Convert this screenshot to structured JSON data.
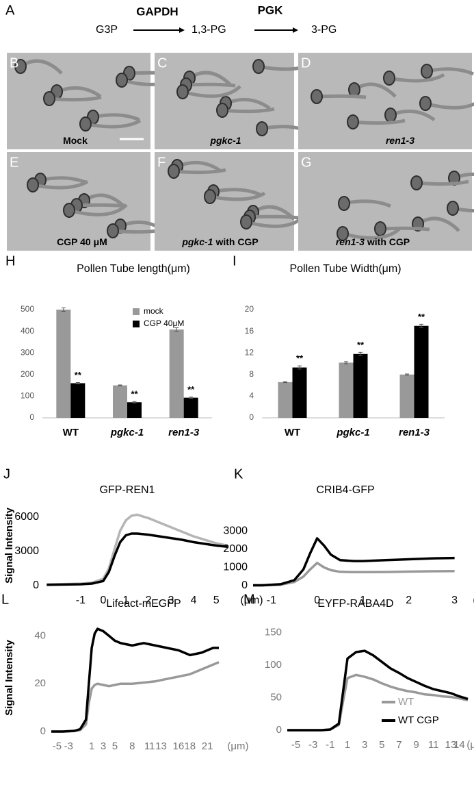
{
  "panel_a": {
    "label": "A",
    "substrate": "G3P",
    "enzyme1": "GAPDH",
    "intermediate": "1,3-PG",
    "enzyme2": "PGK",
    "product": "3-PG"
  },
  "micrographs": [
    {
      "label": "B",
      "caption": "Mock"
    },
    {
      "label": "C",
      "caption": "pgkc-1"
    },
    {
      "label": "D",
      "caption": "ren1-3"
    },
    {
      "label": "E",
      "caption": "CGP 40 μM"
    },
    {
      "label": "F",
      "caption": "pgkc-1",
      "caption_suffix": "with CGP"
    },
    {
      "label": "G",
      "caption": "ren1-3",
      "caption_suffix": "with CGP"
    }
  ],
  "chart_data": [
    {
      "type": "bar",
      "panel": "H",
      "title": "Pollen Tube length(μm)",
      "categories": [
        "WT",
        "pgkc-1",
        "ren1-3"
      ],
      "series": [
        {
          "name": "mock",
          "color": "#999999",
          "values": [
            500,
            150,
            408
          ],
          "errors": [
            8,
            2,
            8
          ]
        },
        {
          "name": "CGP 40μM",
          "color": "#000000",
          "values": [
            160,
            72,
            93
          ],
          "errors": [
            3,
            3,
            3
          ],
          "significance": [
            "**",
            "**",
            "**"
          ]
        }
      ],
      "ylim": [
        0,
        500
      ],
      "yticks": [
        0,
        100,
        200,
        300,
        400,
        500
      ],
      "grid": false
    },
    {
      "type": "bar",
      "panel": "I",
      "title": "Pollen Tube Width(μm)",
      "categories": [
        "WT",
        "pgkc-1",
        "ren1-3"
      ],
      "series": [
        {
          "color": "#999999",
          "values": [
            6.6,
            10.2,
            8.0
          ],
          "errors": [
            0.1,
            0.2,
            0.1
          ]
        },
        {
          "color": "#000000",
          "values": [
            9.3,
            11.8,
            17.0
          ],
          "errors": [
            0.3,
            0.3,
            0.3
          ],
          "significance": [
            "**",
            "**",
            "**"
          ]
        }
      ],
      "ylim": [
        0,
        20
      ],
      "yticks": [
        0,
        4,
        8,
        12,
        16,
        20
      ],
      "grid": false
    },
    {
      "type": "line",
      "panel": "J",
      "title": "GFP-REN1",
      "y_label": "Signal Intensity",
      "x_label": "(μm)",
      "x": [
        -2.5,
        -1.5,
        -1,
        -0.5,
        0,
        0.25,
        0.5,
        0.75,
        1,
        1.25,
        1.5,
        2,
        2.5,
        3,
        3.5,
        4,
        4.5,
        5,
        5.5
      ],
      "series": [
        {
          "color": "#b5b5b5",
          "values": [
            100,
            150,
            180,
            250,
            600,
            1500,
            3200,
            4800,
            5700,
            6100,
            6200,
            5900,
            5500,
            5100,
            4700,
            4300,
            4000,
            3700,
            3500
          ]
        },
        {
          "color": "#000000",
          "values": [
            80,
            100,
            120,
            180,
            400,
            1200,
            2600,
            3800,
            4400,
            4550,
            4550,
            4450,
            4300,
            4150,
            4000,
            3800,
            3650,
            3500,
            3400
          ]
        }
      ],
      "xlim": [
        -2.6,
        5.6
      ],
      "xticks": [
        -1,
        0,
        1,
        2,
        3,
        4,
        5
      ],
      "ylim": [
        0,
        7000
      ],
      "yticks": [
        0,
        3000,
        6000
      ]
    },
    {
      "type": "line",
      "panel": "K",
      "title": "CRIB4-GFP",
      "x_label": "(μm)",
      "x": [
        -1.4,
        -1.2,
        -0.8,
        -0.5,
        -0.3,
        -0.15,
        0,
        0.15,
        0.3,
        0.5,
        0.8,
        1,
        1.5,
        2,
        2.5,
        3
      ],
      "series": [
        {
          "color": "#999999",
          "values": [
            20,
            20,
            50,
            200,
            500,
            900,
            1250,
            1000,
            850,
            760,
            740,
            740,
            750,
            770,
            790,
            800
          ]
        },
        {
          "color": "#000000",
          "values": [
            20,
            20,
            80,
            300,
            900,
            1800,
            2600,
            2200,
            1700,
            1400,
            1350,
            1350,
            1400,
            1450,
            1500,
            1520
          ]
        }
      ],
      "xlim": [
        -1.4,
        3.2
      ],
      "xticks": [
        -1,
        0,
        1,
        2,
        3
      ],
      "ylim": [
        0,
        3200
      ],
      "yticks": [
        0,
        1000,
        2000,
        3000
      ]
    },
    {
      "type": "line",
      "panel": "L",
      "title": "Lifeact-mEGFP",
      "y_label": "Signal Intensity",
      "x_label": "(μm)",
      "x": [
        -6,
        -4,
        -2,
        -1,
        0,
        0.5,
        1,
        1.5,
        2,
        3,
        4,
        5,
        6,
        8,
        10,
        12,
        14,
        16,
        18,
        20,
        22,
        23
      ],
      "series": [
        {
          "color": "#999999",
          "values": [
            0,
            0,
            0.2,
            0.6,
            3,
            12,
            18,
            19.5,
            20,
            19.5,
            19,
            19.5,
            20,
            20,
            20.5,
            21,
            22,
            23,
            24,
            26,
            28,
            29
          ]
        },
        {
          "color": "#000000",
          "values": [
            0,
            0,
            0.3,
            1,
            5,
            20,
            35,
            41,
            43,
            42,
            40,
            38,
            37,
            36,
            37,
            36,
            35,
            34,
            32,
            33,
            35,
            35
          ]
        }
      ],
      "xlim": [
        -6,
        23
      ],
      "xticks": [
        -5,
        -3,
        1,
        3,
        5,
        8,
        11,
        13,
        16,
        18,
        21
      ],
      "ylim": [
        0,
        45
      ],
      "yticks": [
        0,
        20,
        40
      ]
    },
    {
      "type": "line",
      "panel": "M",
      "title": "EYFP-RABA4D",
      "x_label": "(μm)",
      "x": [
        -6,
        -4,
        -2,
        -1,
        0,
        0.5,
        1,
        2,
        3,
        4,
        5,
        6,
        7,
        8,
        9,
        10,
        11,
        12,
        13,
        14,
        15
      ],
      "series": [
        {
          "name": "WT",
          "color": "#999999",
          "values": [
            0,
            0,
            0,
            1,
            8,
            45,
            80,
            85,
            82,
            78,
            72,
            67,
            63,
            60,
            58,
            55,
            54,
            52,
            51,
            49,
            46
          ]
        },
        {
          "name": "WT CGP",
          "color": "#000000",
          "values": [
            0,
            0,
            0,
            1,
            10,
            60,
            110,
            120,
            122,
            115,
            105,
            95,
            88,
            80,
            74,
            68,
            63,
            60,
            57,
            52,
            48
          ]
        }
      ],
      "xlim": [
        -6,
        15
      ],
      "xticks": [
        -5,
        -3,
        -1,
        1,
        3,
        5,
        7,
        9,
        11,
        13,
        14
      ],
      "ylim": [
        0,
        160
      ],
      "yticks": [
        0,
        50,
        100,
        150
      ]
    }
  ]
}
